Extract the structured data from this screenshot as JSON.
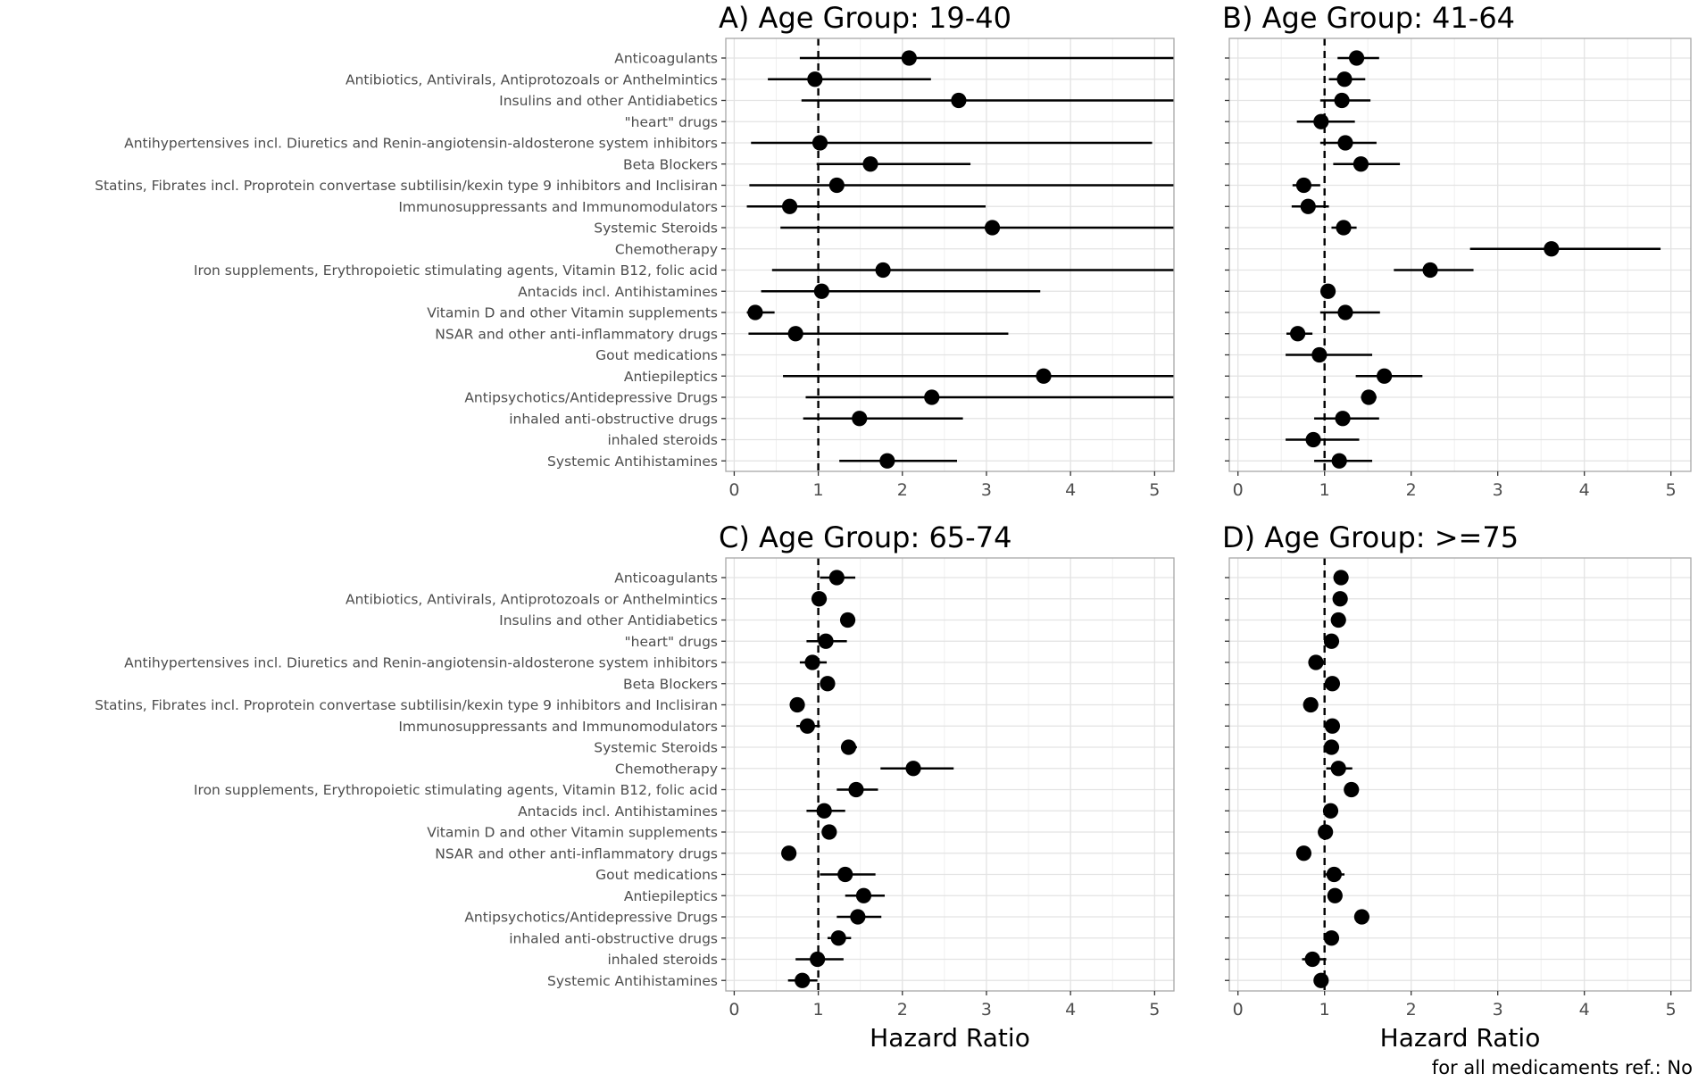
{
  "caption": "for all medicaments ref.: No",
  "chart_data": {
    "type": "forest",
    "categories": [
      "Anticoagulants",
      "Antibiotics, Antivirals, Antiprotozoals or Anthelmintics",
      "Insulins and other Antidiabetics",
      "\"heart\" drugs",
      "Antihypertensives incl. Diuretics and Renin-angiotensin-aldosterone system inhibitors",
      "Beta Blockers",
      "Statins, Fibrates incl. Proprotein convertase subtilisin/kexin type 9 inhibitors and Inclisiran",
      "Immunosuppressants and Immunomodulators",
      "Systemic Steroids",
      "Chemotherapy",
      "Iron supplements, Erythropoietic stimulating agents, Vitamin B12, folic acid",
      "Antacids incl. Antihistamines",
      "Vitamin D and other Vitamin supplements",
      "NSAR and other anti-inflammatory drugs",
      "Gout medications",
      "Antiepileptics",
      "Antipsychotics/Antidepressive Drugs",
      "inhaled anti-obstructive drugs",
      "inhaled steroids",
      "Systemic Antihistamines"
    ],
    "xlabel": "Hazard Ratio",
    "xlim": [
      -0.1,
      5.23
    ],
    "xticks": [
      0,
      1,
      2,
      3,
      4,
      5
    ],
    "reference_line": 1,
    "panels": [
      {
        "title": "A) Age Group: 19-40",
        "hr": [
          2.08,
          0.96,
          2.67,
          null,
          1.02,
          1.62,
          1.22,
          0.66,
          3.07,
          null,
          1.77,
          1.04,
          0.25,
          0.73,
          null,
          3.68,
          2.35,
          1.49,
          null,
          1.82
        ],
        "lower": [
          0.78,
          0.4,
          0.8,
          null,
          0.2,
          0.98,
          0.18,
          0.15,
          0.55,
          null,
          0.45,
          0.32,
          0.15,
          0.17,
          null,
          0.58,
          0.85,
          0.82,
          null,
          1.25
        ],
        "upper": [
          5.23,
          2.34,
          5.23,
          null,
          4.97,
          2.81,
          5.23,
          2.99,
          5.23,
          null,
          5.23,
          3.64,
          0.48,
          3.26,
          null,
          5.23,
          5.23,
          2.72,
          null,
          2.65
        ]
      },
      {
        "title": "B) Age Group: 41-64",
        "hr": [
          1.37,
          1.23,
          1.2,
          0.96,
          1.24,
          1.42,
          0.76,
          0.81,
          1.22,
          3.62,
          2.22,
          1.04,
          1.24,
          0.69,
          0.94,
          1.69,
          1.51,
          1.21,
          0.87,
          1.17
        ],
        "lower": [
          1.15,
          1.05,
          0.95,
          0.68,
          0.95,
          1.1,
          0.63,
          0.62,
          1.08,
          2.68,
          1.8,
          0.97,
          0.95,
          0.56,
          0.55,
          1.36,
          1.42,
          0.88,
          0.55,
          0.88
        ],
        "upper": [
          1.63,
          1.47,
          1.53,
          1.35,
          1.6,
          1.87,
          0.95,
          1.05,
          1.37,
          4.88,
          2.72,
          1.12,
          1.64,
          0.86,
          1.55,
          2.13,
          1.6,
          1.63,
          1.4,
          1.55
        ]
      },
      {
        "title": "C) Age Group: 65-74",
        "hr": [
          1.22,
          1.01,
          1.35,
          1.09,
          0.93,
          1.11,
          0.75,
          0.87,
          1.36,
          2.13,
          1.45,
          1.07,
          1.13,
          0.65,
          1.32,
          1.54,
          1.47,
          1.24,
          0.99,
          0.81
        ],
        "lower": [
          1.02,
          0.93,
          1.27,
          0.86,
          0.78,
          1.03,
          0.7,
          0.74,
          1.27,
          1.74,
          1.22,
          0.86,
          1.08,
          0.6,
          1.02,
          1.32,
          1.22,
          1.11,
          0.73,
          0.64
        ],
        "upper": [
          1.44,
          1.1,
          1.43,
          1.34,
          1.1,
          1.19,
          0.8,
          1.02,
          1.46,
          2.61,
          1.71,
          1.32,
          1.18,
          0.7,
          1.68,
          1.79,
          1.75,
          1.39,
          1.3,
          0.99
        ]
      },
      {
        "title": "D) Age Group: >=75",
        "hr": [
          1.19,
          1.18,
          1.16,
          1.08,
          0.9,
          1.09,
          0.84,
          1.09,
          1.08,
          1.16,
          1.31,
          1.07,
          1.01,
          0.76,
          1.11,
          1.12,
          1.43,
          1.08,
          0.86,
          0.96
        ],
        "lower": [
          1.16,
          1.13,
          1.12,
          1.04,
          0.87,
          1.06,
          0.81,
          1.04,
          1.04,
          1.02,
          1.27,
          1.04,
          0.98,
          0.73,
          1.01,
          1.08,
          1.4,
          1.04,
          0.74,
          0.92
        ],
        "upper": [
          1.23,
          1.24,
          1.2,
          1.12,
          0.94,
          1.12,
          0.87,
          1.14,
          1.12,
          1.32,
          1.36,
          1.1,
          1.04,
          0.79,
          1.23,
          1.17,
          1.47,
          1.13,
          1.02,
          1.0
        ]
      }
    ]
  }
}
